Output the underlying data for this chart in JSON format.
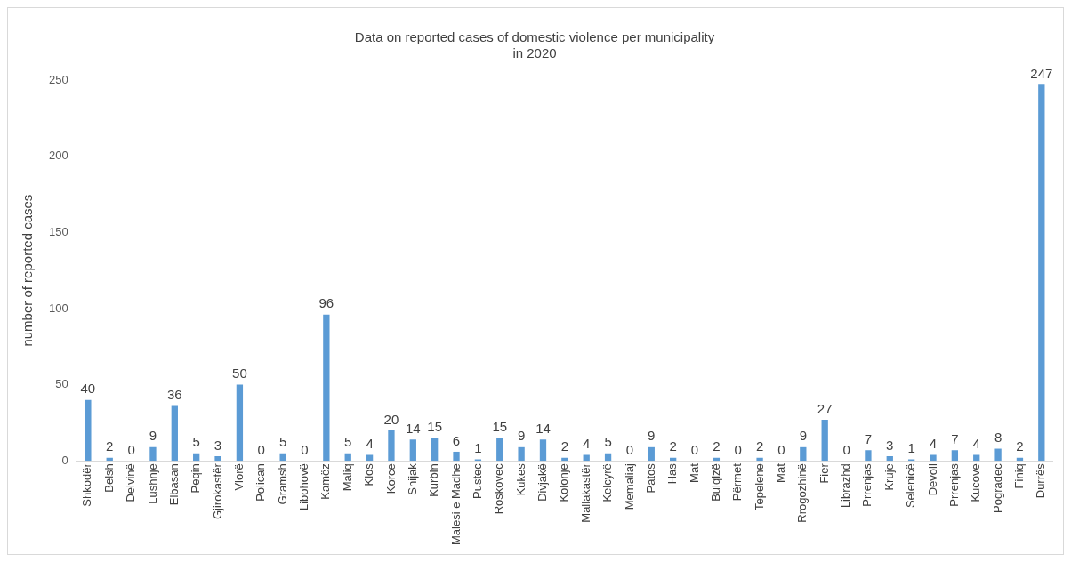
{
  "chart_data": {
    "type": "bar",
    "title": "Data on reported cases of domestic violence per municipality\nin 2020",
    "ylabel": "number of reported cases",
    "categories": [
      "Shkodër",
      "Belsh",
      "Delvinë",
      "Lushnje",
      "Elbasan",
      "Peqin",
      "Gjirokastër",
      "Vlorë",
      "Polican",
      "Gramsh",
      "Libohovë",
      "Kamëz",
      "Maliq",
      "Klos",
      "Korce",
      "Shijak",
      "Kurbin",
      "Malesi e Madhe",
      "Pustec",
      "Roskovec",
      "Kukes",
      "Divjakë",
      "Kolonje",
      "Mallakastër",
      "Kelcyrë",
      "Memaliaj",
      "Patos",
      "Has",
      "Mat",
      "Bulqizë",
      "Përmet",
      "Tepelene",
      "Mat",
      "Rrogozhinë",
      "Fier",
      "Librazhd",
      "Prrenjas",
      "Kruje",
      "Selenicë",
      "Devoll",
      "Prrenjas",
      "Kucove",
      "Pogradec",
      "Finiq",
      "Durrës"
    ],
    "values": [
      40,
      2,
      0,
      9,
      36,
      5,
      3,
      50,
      0,
      5,
      0,
      96,
      5,
      4,
      20,
      14,
      15,
      6,
      1,
      15,
      9,
      14,
      2,
      4,
      5,
      0,
      9,
      2,
      0,
      2,
      0,
      2,
      0,
      9,
      27,
      0,
      7,
      3,
      1,
      4,
      7,
      4,
      8,
      2,
      247
    ],
    "color": "#5b9bd5",
    "ylim": [
      0,
      250
    ],
    "yticks": [
      0,
      50,
      100,
      150,
      200,
      250
    ],
    "grid": false,
    "legend": false,
    "data_labels": true
  }
}
